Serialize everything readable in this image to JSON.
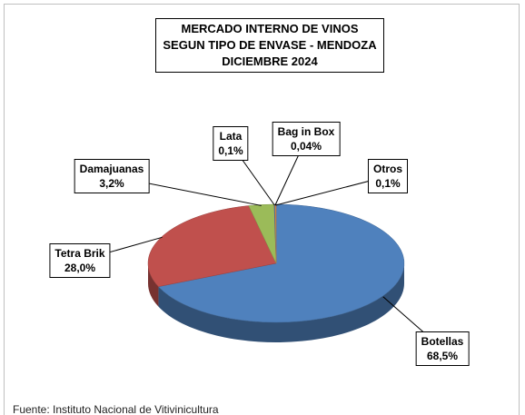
{
  "chart_data": {
    "type": "pie",
    "title": "MERCADO INTERNO DE VINOS\nSEGUN TIPO DE ENVASE - MENDOZA\nDICIEMBRE 2024",
    "categories": [
      "Botellas",
      "Tetra Brik",
      "Damajuanas",
      "Lata",
      "Bag in Box",
      "Otros"
    ],
    "values": [
      68.5,
      28.0,
      3.2,
      0.1,
      0.04,
      0.1
    ],
    "value_labels": [
      "68,5%",
      "28,0%",
      "3,2%",
      "0,1%",
      "0,04%",
      "0,1%"
    ],
    "colors": [
      "#4f81bd",
      "#c0504d",
      "#9bbb59",
      "#8064a2",
      "#4bacc6",
      "#f79646"
    ],
    "source": "Fuente: Instituto Nacional de Vitivinicultura"
  }
}
